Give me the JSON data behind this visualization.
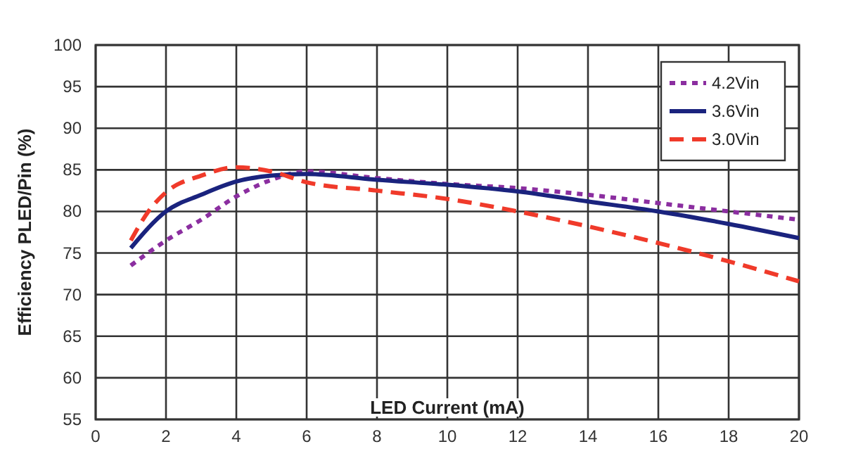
{
  "chart_data": {
    "type": "line",
    "xlabel": "LED Current (mA)",
    "ylabel": "Efficiency  PLED/Pin (%)",
    "xlim": [
      0,
      20
    ],
    "xticks": [
      0,
      2,
      4,
      6,
      8,
      10,
      12,
      14,
      16,
      18,
      20
    ],
    "ylim": [
      55,
      100
    ],
    "yticks": [
      55,
      60,
      65,
      70,
      75,
      80,
      85,
      90,
      95,
      100
    ],
    "grid": true,
    "legend": "top right",
    "marker": "none",
    "series": [
      {
        "name": "4.2Vin",
        "color": "#8b2ea0",
        "line_style": "dotted",
        "x": [
          1,
          2,
          3,
          4,
          5,
          6,
          8,
          10,
          12,
          14,
          16,
          18,
          20
        ],
        "values": [
          73.5,
          76.5,
          79,
          81.8,
          83.8,
          84.8,
          84,
          83.3,
          82.8,
          82,
          81,
          80,
          79
        ]
      },
      {
        "name": "3.6Vin",
        "color": "#1a237e",
        "line_style": "solid",
        "x": [
          1,
          2,
          3,
          4,
          5,
          6,
          8,
          10,
          12,
          14,
          16,
          18,
          20
        ],
        "values": [
          75.6,
          80,
          82,
          83.6,
          84.3,
          84.5,
          83.8,
          83.2,
          82.4,
          81.2,
          80,
          78.5,
          76.8
        ]
      },
      {
        "name": "3.0Vin",
        "color": "#f03a2a",
        "line_style": "dashed",
        "x": [
          1,
          1.5,
          2,
          3,
          4,
          5,
          6,
          8,
          10,
          12,
          14,
          16,
          18,
          20
        ],
        "values": [
          76.5,
          80,
          82.3,
          84.3,
          85.3,
          84.8,
          83.5,
          82.5,
          81.5,
          80,
          78.2,
          76.2,
          74,
          71.6
        ]
      }
    ]
  }
}
